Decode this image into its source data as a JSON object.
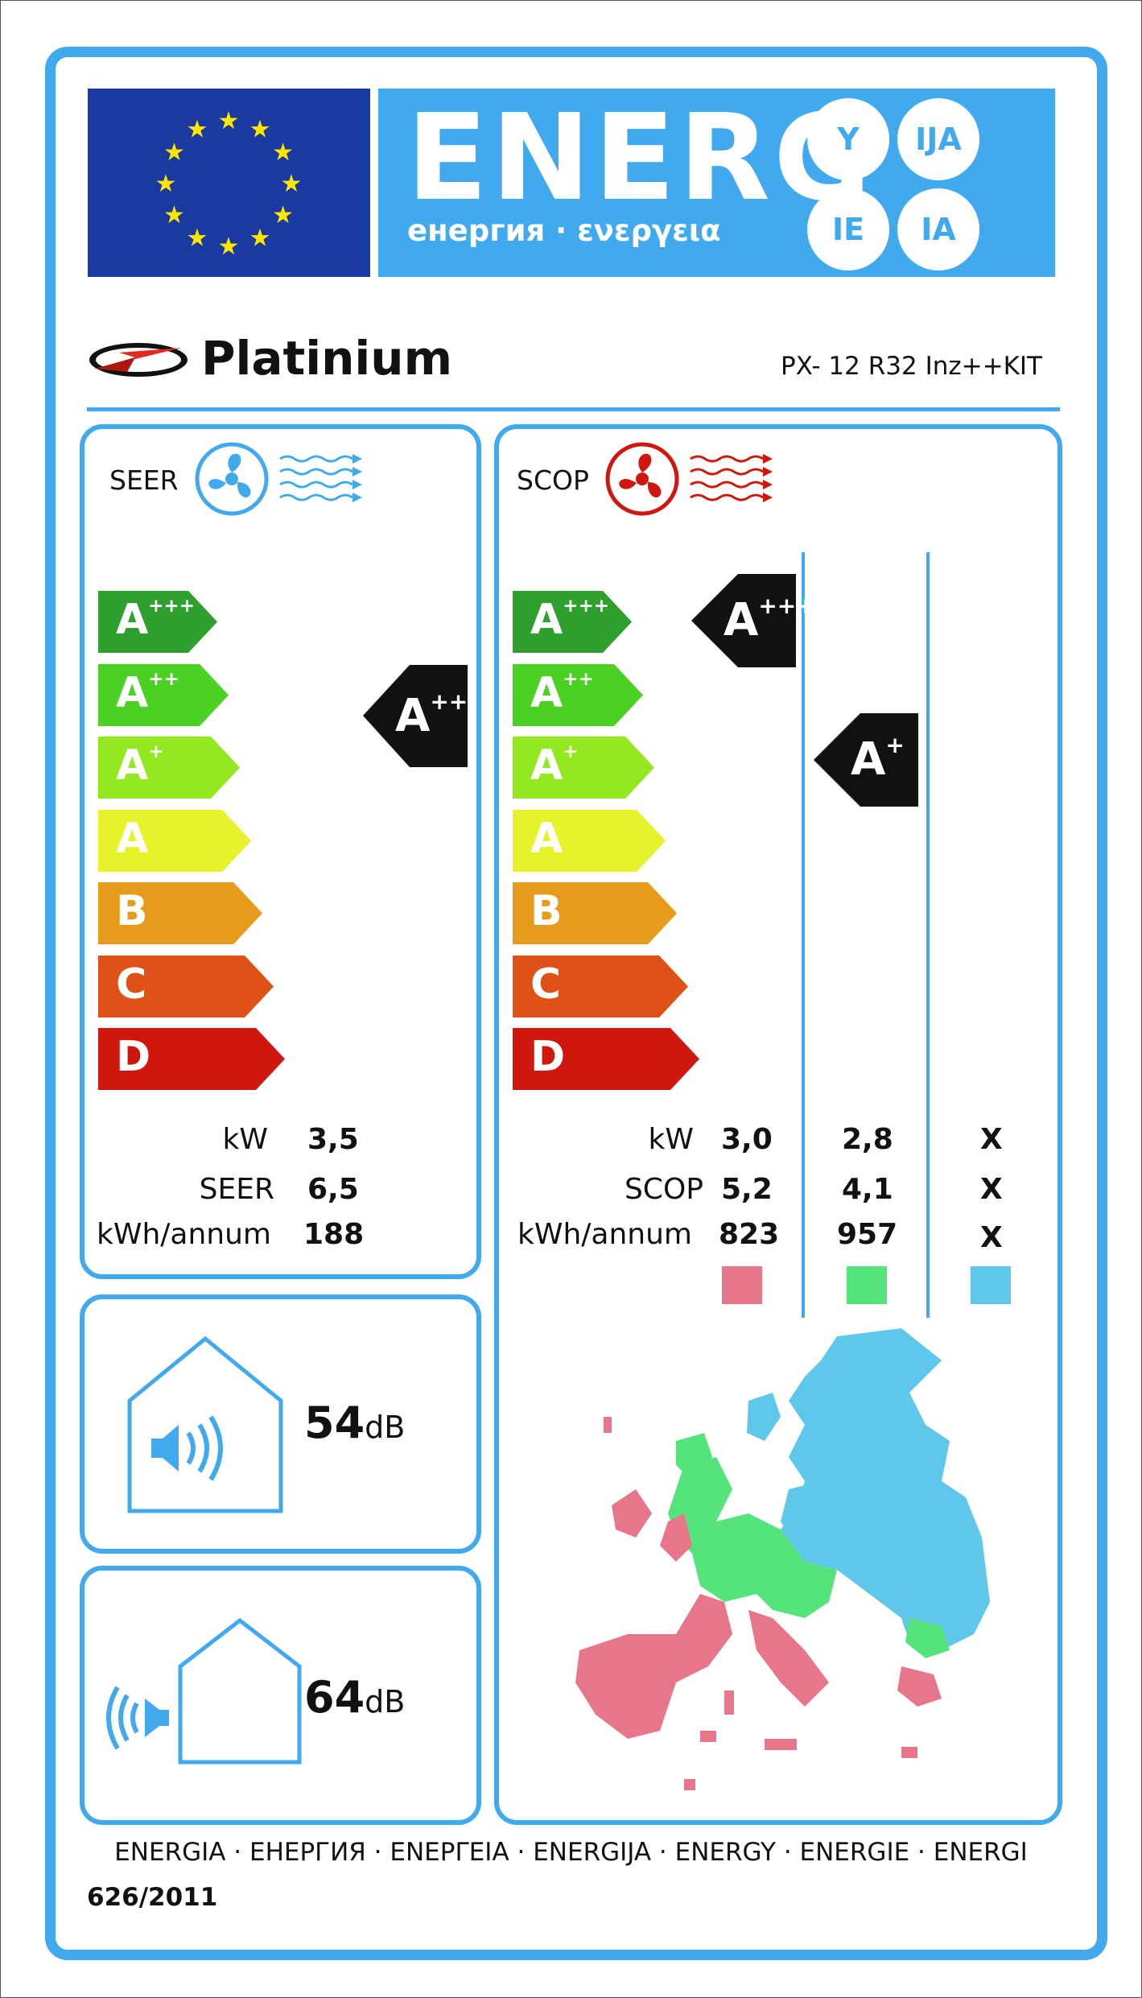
{
  "header": {
    "energy_title": "ENERG",
    "energy_subtitle": "енергия · ενεργεια",
    "language_suffixes": [
      "Y",
      "IJA",
      "IE",
      "IA"
    ]
  },
  "supplier": {
    "brand": "Platinium",
    "model": "PX- 12 R32 Inz++KIT"
  },
  "cooling": {
    "title": "SEER",
    "scale": [
      "A+++",
      "A++",
      "A+",
      "A",
      "B",
      "C",
      "D"
    ],
    "rating": "A++",
    "rows": [
      {
        "label": "kW",
        "value": "3,5"
      },
      {
        "label": "SEER",
        "value": "6,5"
      },
      {
        "label": "kWh/annum",
        "value": "188"
      }
    ]
  },
  "heating": {
    "title": "SCOP",
    "scale": [
      "A+++",
      "A++",
      "A+",
      "A",
      "B",
      "C",
      "D"
    ],
    "ratings": [
      {
        "zone": "warmer",
        "class": "A+++"
      },
      {
        "zone": "average",
        "class": "A+"
      },
      {
        "zone": "colder",
        "class": ""
      }
    ],
    "rows": [
      {
        "label": "kW",
        "values": [
          "3,0",
          "2,8",
          "X"
        ]
      },
      {
        "label": "SCOP",
        "values": [
          "5,2",
          "4,1",
          "X"
        ]
      },
      {
        "label": "kWh/annum",
        "values": [
          "823",
          "957",
          "X"
        ]
      }
    ],
    "zone_colors": [
      "#e8768b",
      "#55e47c",
      "#5ec7ea"
    ]
  },
  "noise": {
    "indoor": {
      "value": "54",
      "unit": "dB"
    },
    "outdoor": {
      "value": "64",
      "unit": "dB"
    }
  },
  "footer": {
    "languages": "ENERGIA · ЕНЕРГИЯ · ΕΝΕΡΓΕΙΑ · ENERGIJA · ENERGY · ENERGIE · ENERGI",
    "regulation": "626/2011"
  },
  "colors": {
    "accent": "#41aaee",
    "eu_blue": "#1a39a1",
    "class_colors": [
      "#2fa02f",
      "#4bd124",
      "#93e81f",
      "#e6f22a",
      "#e69b1b",
      "#df5116",
      "#d0170f"
    ]
  },
  "icons": [
    "eu-flag-icon",
    "platinium-logo-icon",
    "cooling-fan-icon",
    "heating-fan-icon",
    "indoor-noise-icon",
    "outdoor-noise-icon",
    "europe-climate-map"
  ]
}
